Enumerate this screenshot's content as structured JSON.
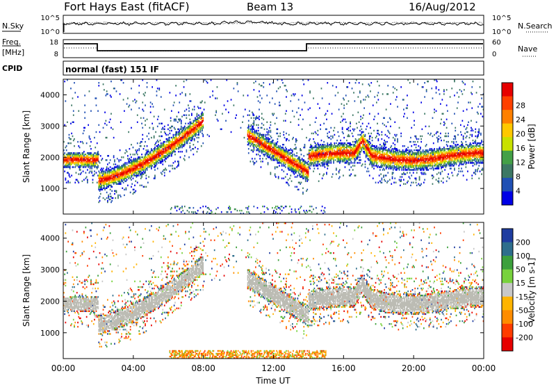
{
  "header": {
    "title": "Fort Hays East (fitACF)",
    "beam": "Beam 13",
    "date": "16/Aug/2012"
  },
  "panels": {
    "nsky_label": "N.Sky",
    "nsearch_label": "N.Search",
    "freq_label": "Freq.",
    "freq_unit": "[MHz]",
    "nave_label": "Nave",
    "cpid_label": "CPID",
    "cpid_value": "normal (fast) 151 IF",
    "noise_ticks_left": [
      "10^5",
      "10^0"
    ],
    "noise_ticks_right": [
      "10^5",
      "10^0"
    ],
    "freq_ticks": [
      "18",
      "8"
    ],
    "nave_ticks": [
      "60",
      "0"
    ]
  },
  "chart_data": [
    {
      "type": "heatmap",
      "title": "",
      "quantity": "Power",
      "ylabel": "Slant Range [km]",
      "xlabel": "Time UT",
      "xlim": [
        "00:00",
        "24:00"
      ],
      "ylim": [
        180,
        4500
      ],
      "yticks": [
        "1000",
        "2000",
        "3000",
        "4000"
      ],
      "colorbar_label": "Power [dB]",
      "colorbar_ticks": [
        "4",
        "8",
        "12",
        "16",
        "20",
        "24",
        "28"
      ],
      "colorbar_range": [
        0,
        32
      ],
      "colors": [
        "#0000e6",
        "#2050b4",
        "#3c7864",
        "#43a047",
        "#c8e100",
        "#ffc800",
        "#ff8000",
        "#ff4000",
        "#e60000"
      ],
      "bands": [
        {
          "name": "early-band",
          "t": [
            0,
            2
          ],
          "range": [
            1800,
            2100
          ],
          "power": 22
        },
        {
          "name": "rising-band",
          "t": [
            2,
            8
          ],
          "range": [
            1200,
            3300
          ],
          "power": 18
        },
        {
          "name": "afternoon-band",
          "t": [
            11,
            14
          ],
          "range": [
            2500,
            1400
          ],
          "power": 18
        },
        {
          "name": "evening-band",
          "t": [
            14,
            24
          ],
          "range": [
            1900,
            2100
          ],
          "power": 20
        }
      ]
    },
    {
      "type": "heatmap",
      "title": "",
      "quantity": "Velocity",
      "ylabel": "Slant Range [km]",
      "xlabel": "Time UT",
      "xlim": [
        "00:00",
        "24:00"
      ],
      "ylim": [
        180,
        4500
      ],
      "yticks": [
        "1000",
        "2000",
        "3000",
        "4000"
      ],
      "colorbar_label": "Velocity [m s-1]",
      "colorbar_ticks": [
        "200",
        "100",
        "50",
        "15",
        "-15",
        "-50",
        "-100",
        "-200"
      ],
      "colors": [
        "#1e3ca0",
        "#2e6e8c",
        "#3ca03c",
        "#78d23c",
        "#c8c8c8",
        "#ffb400",
        "#ff8c00",
        "#ff3c00",
        "#e60000"
      ],
      "ground_scatter_color": "#bcbcb4"
    }
  ],
  "time_axis": {
    "label": "Time UT",
    "ticks": [
      "00:00",
      "04:00",
      "08:00",
      "12:00",
      "16:00",
      "20:00",
      "00:00"
    ]
  }
}
